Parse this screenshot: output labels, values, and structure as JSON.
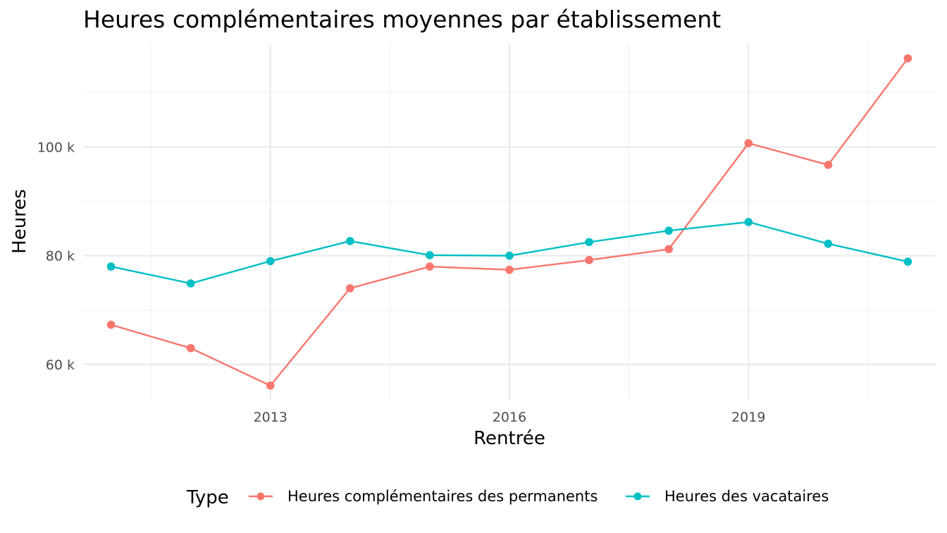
{
  "chart_data": {
    "type": "line",
    "title": "Heures complémentaires moyennes par établissement",
    "xlabel": "Rentrée",
    "ylabel": "Heures",
    "x": [
      2011,
      2012,
      2013,
      2014,
      2015,
      2016,
      2017,
      2018,
      2019,
      2020,
      2021
    ],
    "xlim": [
      2010.65,
      2021.35
    ],
    "ylim": [
      53500,
      119000
    ],
    "x_major_ticks": [
      2013,
      2016,
      2019
    ],
    "x_minor_ticks": [
      2011.5,
      2014.5,
      2017.5,
      2020.5
    ],
    "x_tick_labels": [
      "2013",
      "2016",
      "2019"
    ],
    "y_major_ticks": [
      60000,
      80000,
      100000
    ],
    "y_minor_ticks": [
      70000,
      90000,
      110000
    ],
    "y_tick_labels": [
      "60 k",
      "80 k",
      "100 k"
    ],
    "grid": true,
    "legend": {
      "title": "Type",
      "position": "bottom"
    },
    "series": [
      {
        "name": "Heures complémentaires des permanents",
        "color": "#F8766D",
        "values": [
          67300,
          63000,
          56100,
          74000,
          78000,
          77400,
          79200,
          81200,
          100700,
          96700,
          116300
        ]
      },
      {
        "name": "Heures des vacataires",
        "color": "#00BFC4",
        "values": [
          78000,
          74900,
          79000,
          82700,
          80100,
          80000,
          82500,
          84600,
          86200,
          82200,
          78900
        ]
      }
    ]
  }
}
